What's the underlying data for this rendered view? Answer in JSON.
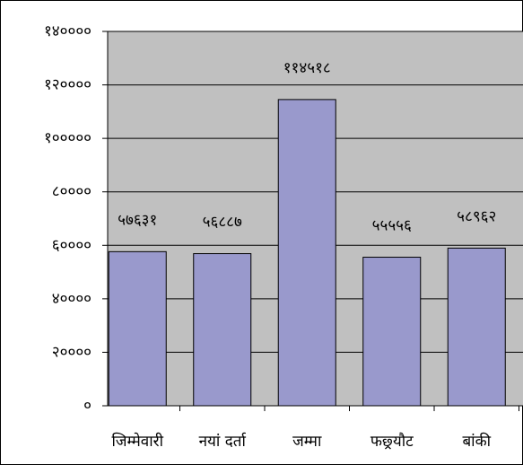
{
  "chart_data": {
    "type": "bar",
    "categories": [
      "जिम्मेवारी",
      "नयां दर्ता",
      "जम्मा",
      "फछ्र्यौट",
      "बांकी"
    ],
    "values": [
      57631,
      56887,
      114518,
      55556,
      58962
    ],
    "value_labels": [
      "५७६३१",
      "५६८८७",
      "११४५१८",
      "५५५५६",
      "५८९६२"
    ],
    "color": "#9999cc",
    "ylim": [
      0,
      140000
    ],
    "yticks": [
      {
        "value": 0,
        "label": "०"
      },
      {
        "value": 20000,
        "label": "२००००"
      },
      {
        "value": 40000,
        "label": "४००००"
      },
      {
        "value": 60000,
        "label": "६००००"
      },
      {
        "value": 80000,
        "label": "८००००"
      },
      {
        "value": 100000,
        "label": "१०००००"
      },
      {
        "value": 120000,
        "label": "१२००००"
      },
      {
        "value": 140000,
        "label": "१४००००"
      }
    ],
    "grid": true
  }
}
